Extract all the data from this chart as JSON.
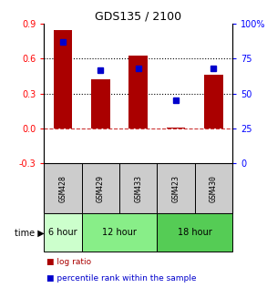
{
  "title": "GDS135 / 2100",
  "samples": [
    "GSM428",
    "GSM429",
    "GSM433",
    "GSM423",
    "GSM430"
  ],
  "log_ratios": [
    0.85,
    0.42,
    0.63,
    0.01,
    0.46
  ],
  "percentile_ranks": [
    87,
    67,
    68,
    45,
    68
  ],
  "ylim_left": [
    -0.3,
    0.9
  ],
  "ylim_right": [
    0,
    100
  ],
  "yticks_left": [
    -0.3,
    0.0,
    0.3,
    0.6,
    0.9
  ],
  "yticks_right": [
    0,
    25,
    50,
    75,
    100
  ],
  "ytick_right_labels": [
    "0",
    "25",
    "50",
    "75",
    "100%"
  ],
  "hlines": [
    0.3,
    0.6
  ],
  "time_groups": [
    {
      "label": "6 hour",
      "span": [
        0,
        1
      ],
      "color": "#ccffcc"
    },
    {
      "label": "12 hour",
      "span": [
        1,
        3
      ],
      "color": "#88ee88"
    },
    {
      "label": "18 hour",
      "span": [
        3,
        5
      ],
      "color": "#55cc55"
    }
  ],
  "bar_color": "#AA0000",
  "dot_color": "#0000CC",
  "bar_width": 0.5,
  "zero_line_color": "#CC3333",
  "hline_color": "#000000",
  "sample_box_color": "#CCCCCC",
  "legend_bar_label": "log ratio",
  "legend_dot_label": "percentile rank within the sample"
}
